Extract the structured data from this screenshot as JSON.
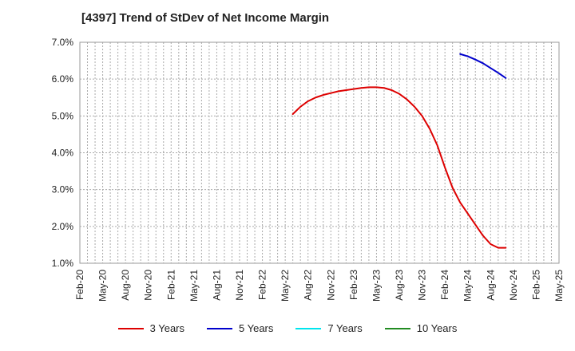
{
  "chart_data": {
    "type": "line",
    "title": "[4397]  Trend of StDev of Net Income Margin",
    "xlabel": "",
    "ylabel": "",
    "ylim": [
      1.0,
      7.0
    ],
    "y_ticks": [
      "1.0%",
      "2.0%",
      "3.0%",
      "4.0%",
      "5.0%",
      "6.0%",
      "7.0%"
    ],
    "x_ticks": [
      "Feb-20",
      "May-20",
      "Aug-20",
      "Nov-20",
      "Feb-21",
      "May-21",
      "Aug-21",
      "Nov-21",
      "Feb-22",
      "May-22",
      "Aug-22",
      "Nov-22",
      "Feb-23",
      "May-23",
      "Aug-23",
      "Nov-23",
      "Feb-24",
      "May-24",
      "Aug-24",
      "Nov-24",
      "Feb-25",
      "May-25"
    ],
    "x_range": [
      0,
      63
    ],
    "series": [
      {
        "name": "3 Years",
        "color": "#dd0000",
        "points": [
          [
            28,
            5.05
          ],
          [
            29,
            5.25
          ],
          [
            30,
            5.4
          ],
          [
            31,
            5.5
          ],
          [
            32,
            5.57
          ],
          [
            33,
            5.62
          ],
          [
            34,
            5.67
          ],
          [
            35,
            5.7
          ],
          [
            36,
            5.73
          ],
          [
            37,
            5.76
          ],
          [
            38,
            5.78
          ],
          [
            39,
            5.78
          ],
          [
            40,
            5.76
          ],
          [
            41,
            5.7
          ],
          [
            42,
            5.6
          ],
          [
            43,
            5.45
          ],
          [
            44,
            5.25
          ],
          [
            45,
            5.0
          ],
          [
            46,
            4.65
          ],
          [
            47,
            4.2
          ],
          [
            48,
            3.6
          ],
          [
            49,
            3.05
          ],
          [
            50,
            2.65
          ],
          [
            51,
            2.35
          ],
          [
            52,
            2.05
          ],
          [
            53,
            1.75
          ],
          [
            54,
            1.52
          ],
          [
            55,
            1.42
          ],
          [
            56,
            1.42
          ]
        ]
      },
      {
        "name": "5 Years",
        "color": "#0000cc",
        "points": [
          [
            50,
            6.68
          ],
          [
            51,
            6.62
          ],
          [
            52,
            6.53
          ],
          [
            53,
            6.43
          ],
          [
            54,
            6.3
          ],
          [
            55,
            6.17
          ],
          [
            56,
            6.03
          ]
        ]
      },
      {
        "name": "7 Years",
        "color": "#00e5ee",
        "points": []
      },
      {
        "name": "10 Years",
        "color": "#228b22",
        "points": []
      }
    ]
  }
}
